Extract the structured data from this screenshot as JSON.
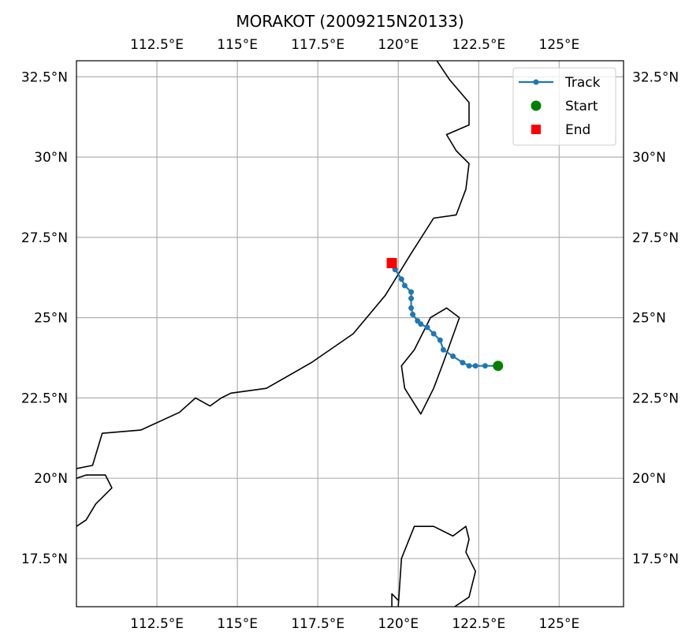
{
  "title": "MORAKOT (2009215N20133)",
  "map": {
    "lon_range": [
      110,
      127
    ],
    "lat_range": [
      16,
      33
    ],
    "lon_ticks": [
      {
        "value": 112.5,
        "label": "112.5°E"
      },
      {
        "value": 115,
        "label": "115°E"
      },
      {
        "value": 117.5,
        "label": "117.5°E"
      },
      {
        "value": 120,
        "label": "120°E"
      },
      {
        "value": 122.5,
        "label": "122.5°E"
      },
      {
        "value": 125,
        "label": "125°E"
      }
    ],
    "lat_ticks": [
      {
        "value": 17.5,
        "label": "17.5°N"
      },
      {
        "value": 20,
        "label": "20°N"
      },
      {
        "value": 22.5,
        "label": "22.5°N"
      },
      {
        "value": 25,
        "label": "25°N"
      },
      {
        "value": 27.5,
        "label": "27.5°N"
      },
      {
        "value": 30,
        "label": "30°N"
      },
      {
        "value": 32.5,
        "label": "32.5°N"
      }
    ],
    "grid": true,
    "colors": {
      "track": "#1f77b4",
      "start": "#008000",
      "end": "#ff0000",
      "coast": "#000000",
      "grid": "#b0b0b0"
    }
  },
  "legend": {
    "placement": "top-right",
    "track_label": "Track",
    "start_label": "Start",
    "end_label": "End"
  },
  "track": [
    {
      "lon": 123.1,
      "lat": 23.5
    },
    {
      "lon": 122.7,
      "lat": 23.5
    },
    {
      "lon": 122.4,
      "lat": 23.5
    },
    {
      "lon": 122.2,
      "lat": 23.5
    },
    {
      "lon": 122.0,
      "lat": 23.6
    },
    {
      "lon": 121.7,
      "lat": 23.8
    },
    {
      "lon": 121.4,
      "lat": 24.0
    },
    {
      "lon": 121.3,
      "lat": 24.3
    },
    {
      "lon": 121.1,
      "lat": 24.5
    },
    {
      "lon": 120.9,
      "lat": 24.7
    },
    {
      "lon": 120.7,
      "lat": 24.8
    },
    {
      "lon": 120.6,
      "lat": 24.9
    },
    {
      "lon": 120.45,
      "lat": 25.1
    },
    {
      "lon": 120.4,
      "lat": 25.3
    },
    {
      "lon": 120.4,
      "lat": 25.6
    },
    {
      "lon": 120.4,
      "lat": 25.8
    },
    {
      "lon": 120.2,
      "lat": 26.0
    },
    {
      "lon": 120.1,
      "lat": 26.2
    },
    {
      "lon": 119.9,
      "lat": 26.5
    },
    {
      "lon": 119.8,
      "lat": 26.7
    }
  ],
  "start": {
    "lon": 123.1,
    "lat": 23.5
  },
  "end": {
    "lon": 119.8,
    "lat": 26.7
  },
  "coastlines": [
    [
      [
        110,
        20.3
      ],
      [
        110.5,
        20.4
      ],
      [
        110.8,
        21.4
      ],
      [
        112,
        21.5
      ],
      [
        113.2,
        22.05
      ],
      [
        113.7,
        22.5
      ],
      [
        114.15,
        22.25
      ],
      [
        114.5,
        22.5
      ],
      [
        114.8,
        22.65
      ],
      [
        115.9,
        22.8
      ],
      [
        117.3,
        23.6
      ],
      [
        118.6,
        24.5
      ],
      [
        119.6,
        25.7
      ],
      [
        120.4,
        27.0
      ],
      [
        121.1,
        28.1
      ],
      [
        121.8,
        28.2
      ],
      [
        122.1,
        29.0
      ],
      [
        122.2,
        29.8
      ],
      [
        121.8,
        30.2
      ],
      [
        121.5,
        30.7
      ],
      [
        122.2,
        31.0
      ],
      [
        122.2,
        31.7
      ],
      [
        121.6,
        32.4
      ],
      [
        121.2,
        33.0
      ]
    ],
    [
      [
        110,
        20.0
      ],
      [
        110.3,
        20.1
      ],
      [
        110.9,
        20.1
      ],
      [
        111.1,
        19.7
      ],
      [
        110.6,
        19.2
      ],
      [
        110.3,
        18.7
      ],
      [
        110,
        18.5
      ]
    ],
    [
      [
        121.9,
        25.0
      ],
      [
        121.5,
        25.3
      ],
      [
        121.0,
        25.0
      ],
      [
        120.5,
        24.0
      ],
      [
        120.1,
        23.5
      ],
      [
        120.2,
        22.8
      ],
      [
        120.7,
        22.0
      ],
      [
        121.1,
        22.8
      ],
      [
        121.4,
        23.6
      ],
      [
        121.9,
        25.0
      ]
    ],
    [
      [
        120.0,
        16.0
      ],
      [
        120.1,
        17.5
      ],
      [
        120.5,
        18.5
      ],
      [
        121.1,
        18.5
      ],
      [
        121.7,
        18.2
      ],
      [
        122.1,
        18.5
      ],
      [
        122.2,
        18.1
      ],
      [
        122.1,
        17.7
      ],
      [
        122.4,
        17.1
      ],
      [
        122.2,
        16.3
      ],
      [
        121.6,
        15.9
      ]
    ],
    [
      [
        119.8,
        16.0
      ],
      [
        119.8,
        16.4
      ],
      [
        120.0,
        16.2
      ]
    ]
  ]
}
